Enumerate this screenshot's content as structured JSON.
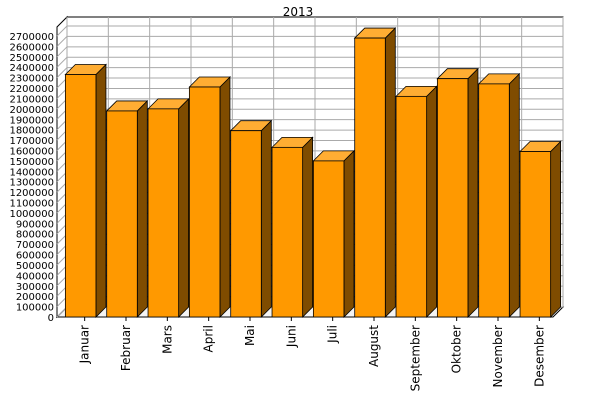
{
  "chart_data": {
    "type": "bar",
    "title": "2013",
    "xlabel": "",
    "ylabel": "",
    "categories": [
      "Januar",
      "Februar",
      "Mars",
      "April",
      "Mai",
      "Juni",
      "Juli",
      "August",
      "September",
      "Oktober",
      "November",
      "Desember"
    ],
    "values": [
      2330000,
      1980000,
      2000000,
      2210000,
      1790000,
      1630000,
      1500000,
      2680000,
      2120000,
      2290000,
      2240000,
      1590000
    ],
    "ylim": [
      0,
      2700000
    ],
    "ytick_step": 100000,
    "grid": true,
    "colors": {
      "bar_front": "#ff9900",
      "bar_top": "#ffad33",
      "bar_side": "#7f4c00",
      "bar_outline": "#000000",
      "grid": "#aaaaaa",
      "axis": "#000000",
      "background": "#ffffff"
    }
  }
}
